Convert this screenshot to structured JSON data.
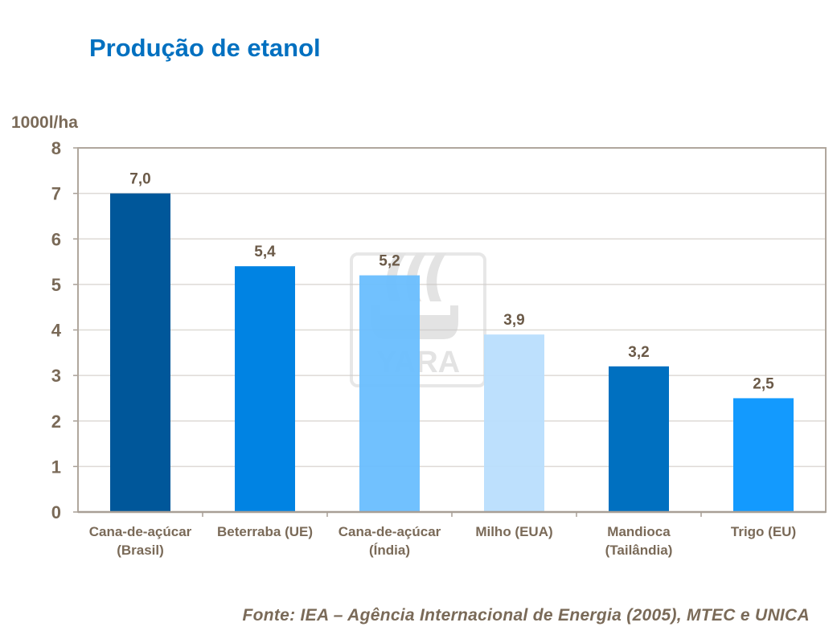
{
  "title": "Produção de etanol",
  "source": "Fonte: IEA – Agência Internacional de Energia (2005), MTEC e UNICA",
  "watermark": "YARA",
  "chart_data": {
    "type": "bar",
    "ylabel": "1000l/ha",
    "ylim": [
      0,
      8
    ],
    "yticks": [
      "0",
      "1",
      "2",
      "3",
      "4",
      "5",
      "6",
      "7",
      "8"
    ],
    "grid": true,
    "categories": [
      [
        "Cana-de-açúcar",
        "(Brasil)"
      ],
      [
        "Beterraba (UE)"
      ],
      [
        "Cana-de-açúcar",
        "(Índia)"
      ],
      [
        "Milho (EUA)"
      ],
      [
        "Mandioca",
        "(Tailândia)"
      ],
      [
        "Trigo (EU)"
      ]
    ],
    "values": [
      7.0,
      5.4,
      5.2,
      3.9,
      3.2,
      2.5
    ],
    "data_labels": [
      "7,0",
      "5,4",
      "5,2",
      "3,9",
      "3,2",
      "2,5"
    ],
    "colors": [
      "#00579a",
      "#0083e3",
      "#69befe",
      "#b9defd",
      "#0070c0",
      "#139afe"
    ]
  }
}
